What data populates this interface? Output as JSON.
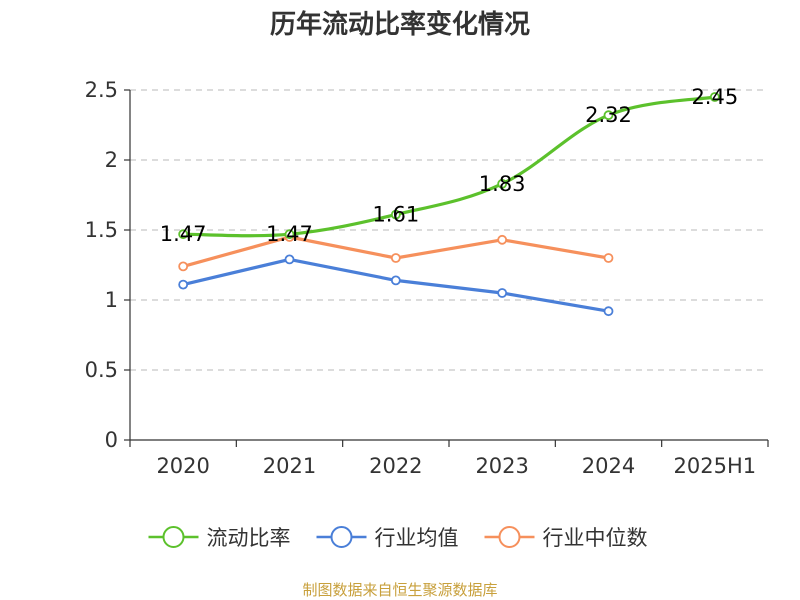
{
  "chart_data": {
    "type": "line",
    "title": "历年流动比率变化情况",
    "categories": [
      "2020",
      "2021",
      "2022",
      "2023",
      "2024",
      "2025H1"
    ],
    "y_ticks": [
      "0",
      "0.5",
      "1",
      "1.5",
      "2",
      "2.5"
    ],
    "ylim": [
      0,
      2.5
    ],
    "grid": true,
    "legend_position": "bottom",
    "series": [
      {
        "name": "流动比率",
        "color": "#5cc12c",
        "smooth": true,
        "show_labels": true,
        "values": [
          1.47,
          1.47,
          1.61,
          1.83,
          2.32,
          2.45
        ],
        "labels": [
          "1.47",
          "1.47",
          "1.61",
          "1.83",
          "2.32",
          "2.45"
        ]
      },
      {
        "name": "行业均值",
        "color": "#4a7fd8",
        "smooth": false,
        "show_labels": false,
        "values": [
          1.11,
          1.29,
          1.14,
          1.05,
          0.92,
          null
        ]
      },
      {
        "name": "行业中位数",
        "color": "#f6905c",
        "smooth": false,
        "show_labels": false,
        "values": [
          1.24,
          1.45,
          1.3,
          1.43,
          1.3,
          null
        ]
      }
    ],
    "source": "制图数据来自恒生聚源数据库"
  }
}
